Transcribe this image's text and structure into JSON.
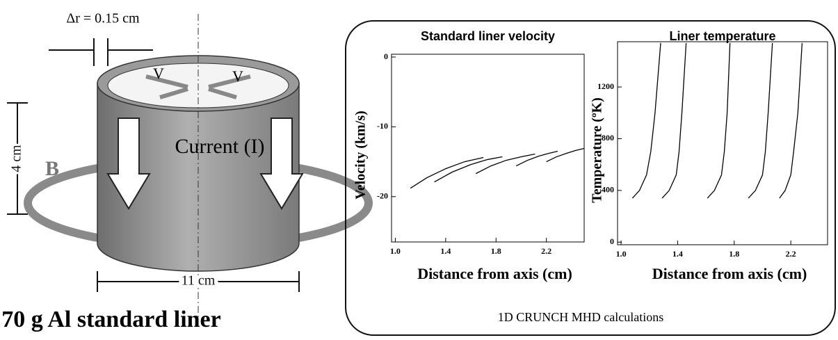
{
  "diagram": {
    "dr_label": "Δr = 0.15 cm",
    "v_left": "V",
    "v_right": "V",
    "height_label": "4 cm",
    "current_label": "Current (I)",
    "field_label": "B",
    "width_label": "11 cm",
    "caption": "70 g Al standard liner"
  },
  "panel_caption": "1D CRUNCH MHD calculations",
  "chart_data": [
    {
      "type": "line",
      "title": "Standard liner velocity",
      "xlabel": "Distance from axis (cm)",
      "ylabel": "Velocity (km/s)",
      "xlim": [
        0.97,
        2.5
      ],
      "ylim": [
        -26.5,
        0.4
      ],
      "xticks": [
        {
          "value": 1,
          "label": "1.0"
        },
        1.4,
        1.8,
        2.2
      ],
      "yticks": [
        0,
        -10,
        -20
      ],
      "series": [
        {
          "color": "#000000",
          "x": [
            1.12,
            1.25,
            1.4,
            1.55,
            1.7
          ],
          "values": [
            -18.8,
            -17.3,
            -16.0,
            -15.0,
            -14.4
          ]
        },
        {
          "color": "#000000",
          "x": [
            1.31,
            1.45,
            1.6,
            1.73,
            1.85
          ],
          "values": [
            -17.9,
            -16.5,
            -15.4,
            -14.7,
            -14.3
          ]
        },
        {
          "color": "#000000",
          "x": [
            1.64,
            1.76,
            1.88,
            2.0,
            2.11
          ],
          "values": [
            -16.7,
            -15.6,
            -14.8,
            -14.3,
            -13.9
          ]
        },
        {
          "color": "#000000",
          "x": [
            1.96,
            2.05,
            2.14,
            2.22,
            2.29
          ],
          "values": [
            -15.6,
            -14.8,
            -14.2,
            -13.8,
            -13.5
          ]
        },
        {
          "color": "#000000",
          "x": [
            2.2,
            2.28,
            2.36,
            2.43,
            2.5
          ],
          "values": [
            -15.0,
            -14.3,
            -13.8,
            -13.4,
            -13.1
          ]
        }
      ]
    },
    {
      "type": "line",
      "title": "Liner temperature",
      "xlabel": "Distance from axis (cm)",
      "ylabel": "Temperature (ºK)",
      "xlim": [
        0.975,
        2.46
      ],
      "ylim": [
        -20,
        1550
      ],
      "xticks": [
        {
          "value": 1,
          "label": "1.0"
        },
        1.4,
        1.8,
        2.2
      ],
      "yticks": [
        0,
        400,
        800,
        1200
      ],
      "series": [
        {
          "color": "#000000",
          "x": [
            1.08,
            1.13,
            1.18,
            1.21,
            1.24,
            1.28
          ],
          "values": [
            340,
            400,
            520,
            700,
            1000,
            1540
          ]
        },
        {
          "color": "#000000",
          "x": [
            1.29,
            1.34,
            1.39,
            1.41,
            1.43,
            1.46
          ],
          "values": [
            340,
            400,
            520,
            700,
            1000,
            1540
          ]
        },
        {
          "color": "#000000",
          "x": [
            1.61,
            1.66,
            1.71,
            1.73,
            1.75,
            1.77
          ],
          "values": [
            340,
            400,
            520,
            700,
            1000,
            1540
          ]
        },
        {
          "color": "#000000",
          "x": [
            1.9,
            1.95,
            2.0,
            2.02,
            2.04,
            2.07
          ],
          "values": [
            340,
            400,
            520,
            700,
            1000,
            1540
          ]
        },
        {
          "color": "#000000",
          "x": [
            2.12,
            2.16,
            2.2,
            2.22,
            2.25,
            2.28
          ],
          "values": [
            340,
            400,
            520,
            700,
            1000,
            1540
          ]
        }
      ]
    }
  ]
}
